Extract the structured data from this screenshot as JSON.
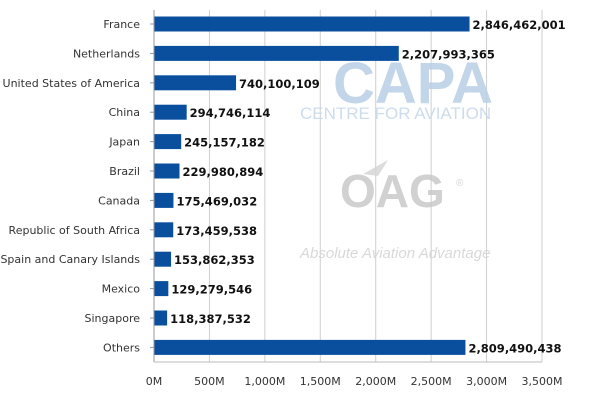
{
  "chart_data": {
    "type": "bar",
    "orientation": "horizontal",
    "categories": [
      "France",
      "Netherlands",
      "United States of America",
      "China",
      "Japan",
      "Brazil",
      "Canada",
      "Republic of South Africa",
      "Spain and Canary Islands",
      "Mexico",
      "Singapore",
      "Others"
    ],
    "values": [
      2846462001,
      2207993365,
      740100109,
      294746114,
      245157182,
      229980894,
      175469032,
      173459538,
      153862353,
      129279546,
      118387532,
      2809490438
    ],
    "value_labels": [
      "2,846,462,001",
      "2,207,993,365",
      "740,100,109",
      "294,746,114",
      "245,157,182",
      "229,980,894",
      "175,469,032",
      "173,459,538",
      "153,862,353",
      "129,279,546",
      "118,387,532",
      "2,809,490,438"
    ],
    "x_ticks": [
      0,
      500000000,
      1000000000,
      1500000000,
      2000000000,
      2500000000,
      3000000000,
      3500000000
    ],
    "x_tick_labels": [
      "0M",
      "500M",
      "1,000M",
      "1,500M",
      "2,000M",
      "2,500M",
      "3,000M",
      "3,500M"
    ],
    "xlim": [
      0,
      3500000000
    ],
    "grid": "vertical",
    "bar_color": "#0a4f9e"
  },
  "watermarks": {
    "capa_logo": "CAPA",
    "capa_subtitle": "CENTRE FOR AVIATION",
    "oag_logo": "OAG",
    "oag_tagline": "Absolute Aviation Advantage"
  }
}
